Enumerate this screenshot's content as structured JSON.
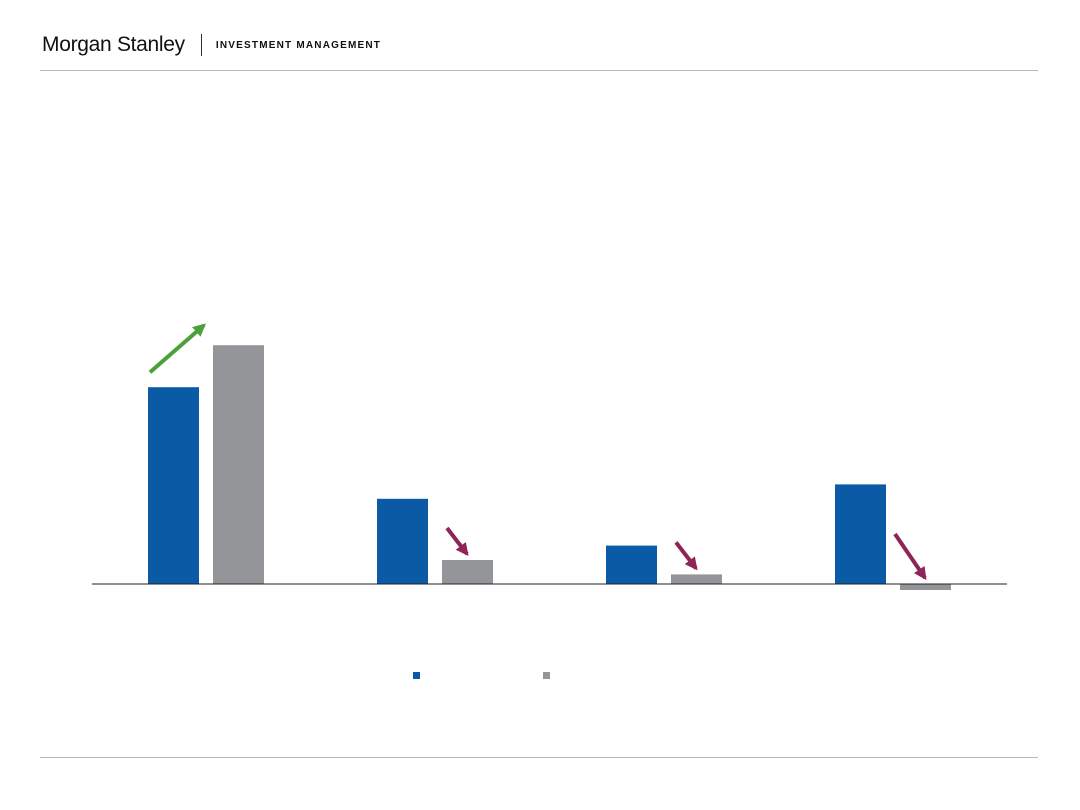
{
  "header": {
    "brand_name": "Morgan Stanley",
    "division": "INVESTMENT MANAGEMENT"
  },
  "colors": {
    "series_blue": "#0a5aa5",
    "series_gray": "#939598",
    "arrow_up": "#4aa138",
    "arrow_down": "#8e2554",
    "axis": "#222222",
    "rule": "#b8b8b8"
  },
  "chart_data": {
    "type": "bar",
    "title": "",
    "xlabel": "",
    "ylabel": "",
    "categories": [
      "",
      "",
      "",
      ""
    ],
    "ylim": [
      -0.3,
      10.5
    ],
    "grid": false,
    "legend_placement": "bottom-center",
    "series": [
      {
        "color": "#0a5aa5",
        "values": [
          8.2,
          3.55,
          1.6,
          4.15
        ]
      },
      {
        "color": "#939598",
        "values": [
          9.95,
          1.0,
          0.4,
          -0.25
        ]
      }
    ],
    "annotations": [
      {
        "category_index": 0,
        "direction": "up",
        "color": "#4aa138"
      },
      {
        "category_index": 1,
        "direction": "down",
        "color": "#8e2554"
      },
      {
        "category_index": 2,
        "direction": "down",
        "color": "#8e2554"
      },
      {
        "category_index": 3,
        "direction": "down",
        "color": "#8e2554"
      }
    ]
  }
}
